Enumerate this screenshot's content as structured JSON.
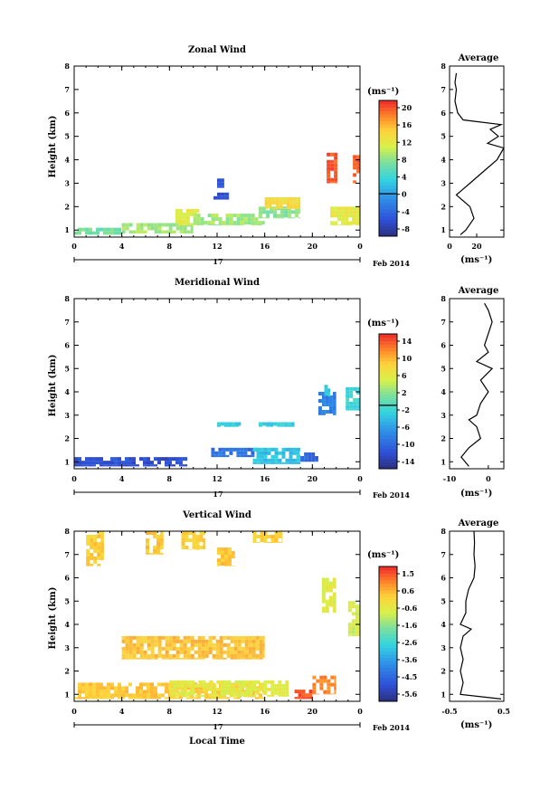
{
  "chart_data": [
    {
      "type": "heatmap",
      "title": "Zonal Wind",
      "ylabel": "Height (km)",
      "x_ticks": [
        "0",
        "4",
        "8",
        "12",
        "16",
        "20",
        "0"
      ],
      "y_ticks": [
        "1",
        "2",
        "3",
        "4",
        "5",
        "6",
        "7",
        "8"
      ],
      "xlim": [
        0,
        24
      ],
      "ylim": [
        0.7,
        8
      ],
      "date_marker": "17",
      "month_label": "Feb 2014",
      "colorbar": {
        "unit": "(ms⁻¹)",
        "ticks": [
          "20",
          "16",
          "12",
          "8",
          "4",
          "0",
          "-4",
          "-8"
        ],
        "range": [
          -10,
          22
        ],
        "zero_line": 0
      },
      "cells": [
        {
          "x": [
            0,
            4
          ],
          "y": [
            0.8,
            1.1
          ],
          "v": 7
        },
        {
          "x": [
            4,
            10
          ],
          "y": [
            0.85,
            1.3
          ],
          "v": 9
        },
        {
          "x": [
            8.5,
            10.5
          ],
          "y": [
            1.2,
            1.9
          ],
          "v": 12
        },
        {
          "x": [
            10,
            16
          ],
          "y": [
            1.2,
            1.7
          ],
          "v": 9
        },
        {
          "x": [
            15.5,
            19
          ],
          "y": [
            1.5,
            2.0
          ],
          "v": 8
        },
        {
          "x": [
            16,
            19
          ],
          "y": [
            1.9,
            2.4
          ],
          "v": 14
        },
        {
          "x": [
            11.7,
            13
          ],
          "y": [
            2.3,
            2.6
          ],
          "v": -6
        },
        {
          "x": [
            12,
            12.6
          ],
          "y": [
            2.8,
            3.2
          ],
          "v": -5
        },
        {
          "x": [
            21.2,
            22.1
          ],
          "y": [
            3.0,
            4.3
          ],
          "v": 20
        },
        {
          "x": [
            23.4,
            24
          ],
          "y": [
            3.0,
            4.2
          ],
          "v": 20
        },
        {
          "x": [
            21.5,
            24
          ],
          "y": [
            1.2,
            2.0
          ],
          "v": 12
        }
      ],
      "average": {
        "title": "Average",
        "xlabel": "(ms⁻¹)",
        "x_ticks": [
          "0",
          "20"
        ],
        "xlim": [
          0,
          40
        ],
        "heights": [
          0.8,
          1.0,
          1.5,
          2.0,
          2.5,
          3.0,
          3.5,
          4.0,
          4.5,
          4.7,
          5.0,
          5.3,
          5.5,
          5.7,
          6.0,
          6.5,
          7.0,
          7.3,
          7.7
        ],
        "values": [
          8,
          12,
          18,
          15,
          5,
          15,
          25,
          35,
          40,
          28,
          36,
          30,
          38,
          10,
          6,
          4,
          5,
          4,
          5
        ]
      }
    },
    {
      "type": "heatmap",
      "title": "Meridional Wind",
      "ylabel": "Height (km)",
      "x_ticks": [
        "0",
        "4",
        "8",
        "12",
        "16",
        "20",
        "0"
      ],
      "y_ticks": [
        "1",
        "2",
        "3",
        "4",
        "5",
        "6",
        "7",
        "8"
      ],
      "xlim": [
        0,
        24
      ],
      "ylim": [
        0.7,
        8
      ],
      "date_marker": "17",
      "month_label": "Feb 2014",
      "colorbar": {
        "unit": "(ms⁻¹)",
        "ticks": [
          "14",
          "10",
          "6",
          "2",
          "-2",
          "-6",
          "-10",
          "-14"
        ],
        "range": [
          -16,
          18
        ],
        "zero_line": 0
      },
      "cells": [
        {
          "x": [
            0,
            9.5
          ],
          "y": [
            0.8,
            1.2
          ],
          "v": -12
        },
        {
          "x": [
            11.5,
            16
          ],
          "y": [
            1.2,
            1.6
          ],
          "v": -9
        },
        {
          "x": [
            15,
            19
          ],
          "y": [
            0.9,
            1.6
          ],
          "v": -3
        },
        {
          "x": [
            19,
            20.5
          ],
          "y": [
            1.0,
            1.4
          ],
          "v": -10
        },
        {
          "x": [
            20.5,
            22
          ],
          "y": [
            3.0,
            4.0
          ],
          "v": -8
        },
        {
          "x": [
            21,
            21.5
          ],
          "y": [
            3.8,
            4.3
          ],
          "v": -2
        },
        {
          "x": [
            22.8,
            24
          ],
          "y": [
            3.2,
            4.2
          ],
          "v": -1
        },
        {
          "x": [
            12,
            14
          ],
          "y": [
            2.5,
            2.7
          ],
          "v": -2
        },
        {
          "x": [
            15.5,
            18.5
          ],
          "y": [
            2.5,
            2.7
          ],
          "v": -2
        }
      ],
      "average": {
        "title": "Average",
        "xlabel": "(ms⁻¹)",
        "x_ticks": [
          "-10",
          "0"
        ],
        "xlim": [
          -10,
          4
        ],
        "heights": [
          0.8,
          1.2,
          1.6,
          2.0,
          2.5,
          2.8,
          3.0,
          3.5,
          4.0,
          4.5,
          5.0,
          5.3,
          5.7,
          6.0,
          6.5,
          7.0,
          7.5,
          7.8
        ],
        "values": [
          -5,
          -7,
          -5,
          -2,
          -3,
          -5,
          -3,
          -2,
          0,
          -2,
          1,
          -3,
          0,
          -1,
          0,
          1,
          0,
          -1
        ]
      }
    },
    {
      "type": "heatmap",
      "title": "Vertical Wind",
      "ylabel": "Height (km)",
      "xlabel": "Local Time",
      "x_ticks": [
        "0",
        "4",
        "8",
        "12",
        "16",
        "20",
        "0"
      ],
      "y_ticks": [
        "1",
        "2",
        "3",
        "4",
        "5",
        "6",
        "7",
        "8"
      ],
      "xlim": [
        0,
        24
      ],
      "ylim": [
        0.7,
        8
      ],
      "date_marker": "17",
      "month_label": "Feb 2014",
      "colorbar": {
        "unit": "(ms⁻¹)",
        "ticks": [
          "1.5",
          "0.6",
          "-0.6",
          "-1.6",
          "-2.6",
          "-3.6",
          "-4.5",
          "-5.6"
        ],
        "range": [
          -6,
          2
        ]
      },
      "cells": [
        {
          "x": [
            1,
            2.5
          ],
          "y": [
            6.5,
            8.0
          ],
          "v": 0.2
        },
        {
          "x": [
            6,
            7.5
          ],
          "y": [
            7.0,
            8.0
          ],
          "v": 0.3
        },
        {
          "x": [
            9,
            11
          ],
          "y": [
            7.2,
            8.0
          ],
          "v": 0.2
        },
        {
          "x": [
            12,
            13.5
          ],
          "y": [
            6.5,
            7.3
          ],
          "v": 0.3
        },
        {
          "x": [
            15,
            17.5
          ],
          "y": [
            7.5,
            8.0
          ],
          "v": 0.2
        },
        {
          "x": [
            4,
            16
          ],
          "y": [
            2.5,
            3.5
          ],
          "v": 0.4
        },
        {
          "x": [
            0,
            16
          ],
          "y": [
            0.8,
            1.5
          ],
          "v": 0.3
        },
        {
          "x": [
            8,
            18
          ],
          "y": [
            0.9,
            1.6
          ],
          "v": -0.5
        },
        {
          "x": [
            18.5,
            20
          ],
          "y": [
            0.8,
            1.2
          ],
          "v": 1.6
        },
        {
          "x": [
            20,
            22
          ],
          "y": [
            1.0,
            1.8
          ],
          "v": 1.0
        },
        {
          "x": [
            20.8,
            22
          ],
          "y": [
            4.5,
            6.0
          ],
          "v": -0.6
        },
        {
          "x": [
            23,
            24
          ],
          "y": [
            3.5,
            5.0
          ],
          "v": -0.7
        }
      ],
      "average": {
        "title": "Average",
        "xlabel": "(ms⁻¹)",
        "x_ticks": [
          "-0.5",
          "0.5"
        ],
        "xlim": [
          -0.5,
          0.5
        ],
        "heights": [
          0.8,
          1.0,
          1.5,
          2.0,
          2.5,
          3.0,
          3.5,
          3.8,
          4.0,
          4.5,
          5.0,
          5.5,
          6.0,
          6.5,
          7.0,
          7.5,
          8.0
        ],
        "values": [
          0.45,
          -0.3,
          -0.25,
          -0.3,
          -0.25,
          -0.3,
          -0.25,
          -0.1,
          -0.3,
          -0.2,
          -0.2,
          -0.15,
          -0.05,
          -0.03,
          -0.05,
          -0.04,
          -0.05
        ]
      }
    }
  ]
}
